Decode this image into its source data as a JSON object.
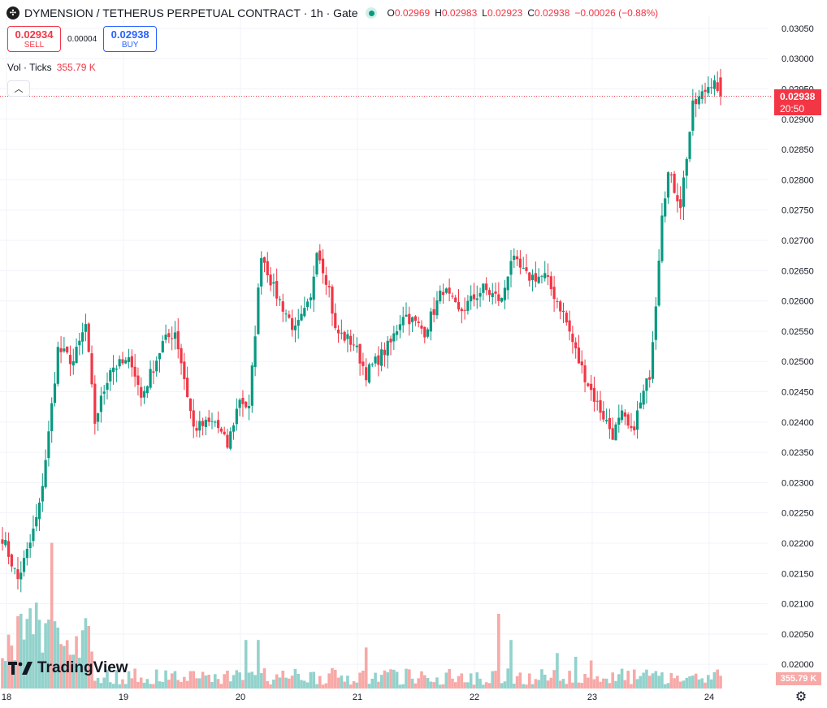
{
  "header": {
    "title": "DYMENSION / TETHERUS PERPETUAL CONTRACT · 1h · Gate",
    "symbol_icon": "crossed-arrows-icon",
    "ohlc": [
      {
        "k": "O",
        "v": "0.02969"
      },
      {
        "k": "H",
        "v": "0.02983"
      },
      {
        "k": "L",
        "v": "0.02923"
      },
      {
        "k": "C",
        "v": "0.02938"
      },
      {
        "k": "",
        "v": "−0.00026 (−0.88%)"
      }
    ]
  },
  "trade": {
    "sell_price": "0.02934",
    "sell_label": "SELL",
    "spread": "0.00004",
    "buy_price": "0.02938",
    "buy_label": "BUY"
  },
  "volume_legend": {
    "label": "Vol · Ticks",
    "value": "355.79 K"
  },
  "last_price": {
    "price": "0.02938",
    "countdown": "20:50"
  },
  "volume_axis_label": "355.79 K",
  "logo_text": "TradingView",
  "colors": {
    "up": "#089981",
    "down": "#f23645",
    "up_vol": "#92d2cc",
    "down_vol": "#f7a9a7",
    "grid": "#f0f3fa"
  },
  "chart_data": {
    "type": "candlestick",
    "price_axis_ticks": [
      "0.03050",
      "0.03000",
      "0.02950",
      "0.02900",
      "0.02850",
      "0.02800",
      "0.02750",
      "0.02700",
      "0.02650",
      "0.02600",
      "0.02550",
      "0.02500",
      "0.02450",
      "0.02400",
      "0.02350",
      "0.02300",
      "0.02250",
      "0.02200",
      "0.02150",
      "0.02100",
      "0.02050",
      "0.02000"
    ],
    "ylim": [
      0.0196,
      0.0307
    ],
    "time_axis_ticks": [
      "18",
      "19",
      "20",
      "21",
      "22",
      "23",
      "24"
    ],
    "last_price_line": 0.02938,
    "segments": [
      [
        0,
        0.0221
      ],
      [
        5,
        0.0214
      ],
      [
        9,
        0.022
      ],
      [
        12,
        0.0226
      ],
      [
        15,
        0.0238
      ],
      [
        18,
        0.0252
      ],
      [
        23,
        0.025
      ],
      [
        27,
        0.0256
      ],
      [
        30,
        0.024
      ],
      [
        35,
        0.0249
      ],
      [
        42,
        0.025
      ],
      [
        45,
        0.0244
      ],
      [
        52,
        0.0253
      ],
      [
        56,
        0.0255
      ],
      [
        58,
        0.025
      ],
      [
        62,
        0.0239
      ],
      [
        69,
        0.024
      ],
      [
        73,
        0.0236
      ],
      [
        77,
        0.0244
      ],
      [
        80,
        0.0242
      ],
      [
        82,
        0.0255
      ],
      [
        84,
        0.0268
      ],
      [
        88,
        0.0262
      ],
      [
        95,
        0.0255
      ],
      [
        97,
        0.0257
      ],
      [
        100,
        0.026
      ],
      [
        102,
        0.0269
      ],
      [
        106,
        0.0262
      ],
      [
        108,
        0.0255
      ],
      [
        114,
        0.0253
      ],
      [
        118,
        0.0248
      ],
      [
        126,
        0.0253
      ],
      [
        130,
        0.0258
      ],
      [
        137,
        0.0255
      ],
      [
        143,
        0.0262
      ],
      [
        148,
        0.0258
      ],
      [
        156,
        0.0262
      ],
      [
        162,
        0.026
      ],
      [
        165,
        0.0267
      ],
      [
        170,
        0.0264
      ],
      [
        176,
        0.0264
      ],
      [
        182,
        0.0258
      ],
      [
        187,
        0.025
      ],
      [
        192,
        0.0244
      ],
      [
        198,
        0.0238
      ],
      [
        201,
        0.0241
      ],
      [
        204,
        0.0238
      ],
      [
        210,
        0.0248
      ],
      [
        212,
        0.026
      ],
      [
        214,
        0.0275
      ],
      [
        216,
        0.0281
      ],
      [
        220,
        0.0276
      ],
      [
        224,
        0.0292
      ],
      [
        227,
        0.0294
      ],
      [
        231,
        0.0297
      ],
      [
        232,
        0.0294
      ]
    ],
    "volume_spikes": [
      [
        16,
        0.78,
        0
      ],
      [
        11,
        0.46,
        1
      ],
      [
        14,
        0.35,
        1
      ],
      [
        24,
        0.28,
        0
      ],
      [
        79,
        0.26,
        1
      ],
      [
        83,
        0.26,
        1
      ],
      [
        118,
        0.22,
        0
      ],
      [
        161,
        0.4,
        0
      ],
      [
        165,
        0.26,
        1
      ],
      [
        180,
        0.19,
        1
      ],
      [
        186,
        0.17,
        1
      ],
      [
        191,
        0.15,
        0
      ]
    ]
  }
}
